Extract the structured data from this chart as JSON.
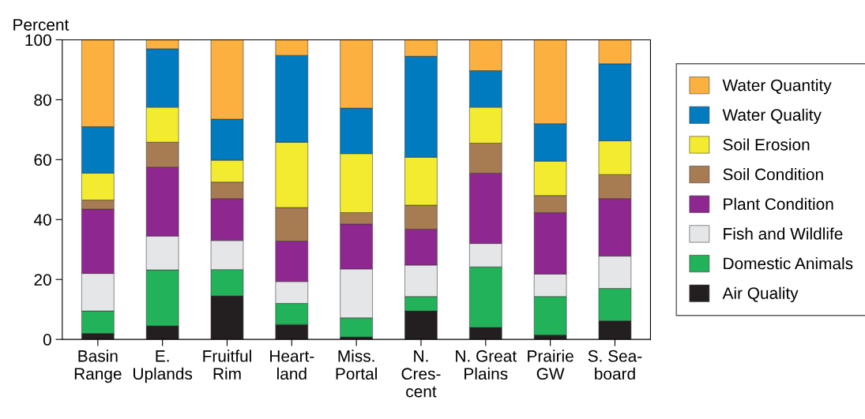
{
  "chart_data": {
    "type": "bar",
    "stacked": true,
    "ylabel": "Percent",
    "categories": [
      "Basin\nRange",
      "E.\nUplands",
      "Fruitful\nRim",
      "Heart-\nland",
      "Miss.\nPortal",
      "N.\nCres-\ncent",
      "N. Great\nPlains",
      "Prairie\nGW",
      "S. Sea-\nboard"
    ],
    "series": [
      {
        "name": "Air Quality",
        "color": "#231f20",
        "values": [
          2,
          4.5,
          14.5,
          5,
          0.8,
          9.5,
          4,
          1.5,
          6.2
        ]
      },
      {
        "name": "Domestic Animals",
        "color": "#22b25a",
        "values": [
          7.5,
          18.7,
          8.8,
          7,
          6.4,
          4.8,
          20.2,
          12.8,
          10.8
        ]
      },
      {
        "name": "Fish and Wildlife",
        "color": "#e5e6e8",
        "values": [
          12.5,
          11.3,
          9.7,
          7.3,
          16.3,
          10.5,
          7.8,
          7.5,
          10.8
        ]
      },
      {
        "name": "Plant Condition",
        "color": "#8e278f",
        "values": [
          21.5,
          23,
          14,
          13.5,
          15,
          12,
          23.5,
          20.5,
          19.2
        ]
      },
      {
        "name": "Soil Condition",
        "color": "#a87c52",
        "values": [
          3,
          8.3,
          5.5,
          11.2,
          3.8,
          8,
          10,
          5.7,
          8
        ]
      },
      {
        "name": "Soil Erosion",
        "color": "#f2eb2f",
        "values": [
          9,
          11.7,
          7.3,
          21.8,
          19.7,
          16,
          12,
          11.5,
          11.3
        ]
      },
      {
        "name": "Water Quality",
        "color": "#007bc0",
        "values": [
          15.5,
          19.5,
          13.7,
          29,
          15.2,
          33.7,
          12.2,
          12.5,
          25.7
        ]
      },
      {
        "name": "Water Quantity",
        "color": "#fbb040",
        "values": [
          29,
          3,
          26.5,
          5.2,
          22.8,
          5.5,
          10.3,
          28,
          8
        ]
      }
    ],
    "ylim": [
      0,
      100
    ],
    "yticks": [
      0,
      20,
      40,
      60,
      80,
      100
    ],
    "grid": false,
    "legend": "right"
  }
}
